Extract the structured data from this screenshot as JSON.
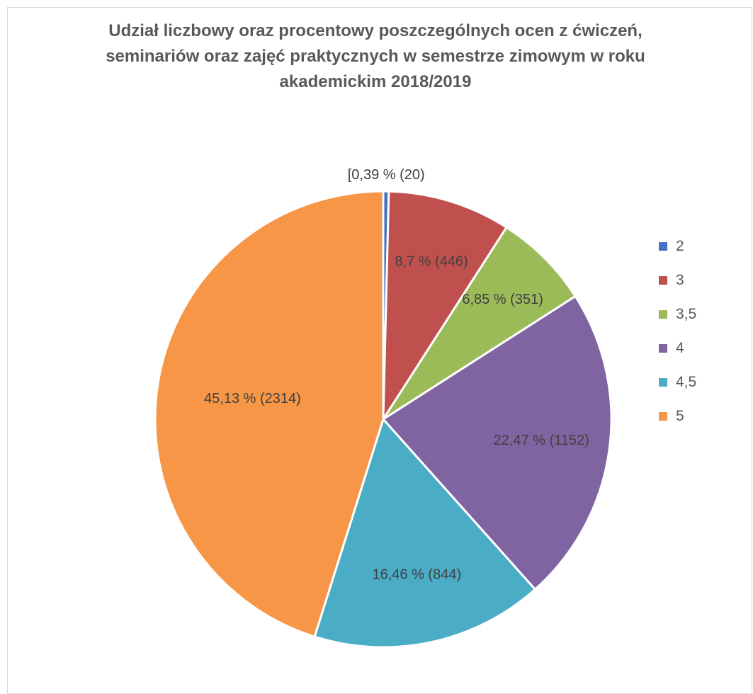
{
  "chart_data": {
    "type": "pie",
    "title": "Udział liczbowy oraz procentowy poszczególnych ocen z ćwiczeń,\nseminariów  oraz zajęć praktycznych w semestrze zimowym w  roku\nakademickim 2018/2019",
    "categories": [
      "2",
      "3",
      "3,5",
      "4",
      "4,5",
      "5"
    ],
    "values": [
      20,
      446,
      351,
      1152,
      844,
      2314
    ],
    "percentages": [
      0.39,
      8.7,
      6.85,
      22.47,
      16.46,
      45.13
    ],
    "data_labels": [
      "[0,39 % (20)",
      "8,7 % (446)",
      "6,85 % (351)",
      "22,47 % (1152)",
      "16,46 % (844)",
      "45,13 % (2314)"
    ],
    "colors": [
      "#4472C4",
      "#C0504D",
      "#9BBB59",
      "#8064A2",
      "#4BACC6",
      "#F79646"
    ],
    "legend_position": "right"
  }
}
